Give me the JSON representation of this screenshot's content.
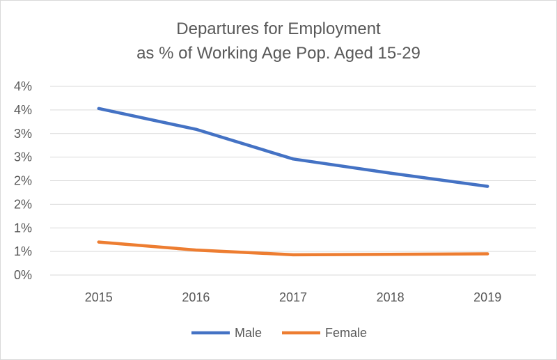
{
  "chart_data": {
    "type": "line",
    "title_lines": [
      "Departures for Employment",
      "as % of Working Age Pop. Aged 15-29"
    ],
    "categories": [
      "2015",
      "2016",
      "2017",
      "2018",
      "2019"
    ],
    "y_tick_labels": [
      "0%",
      "1%",
      "1%",
      "2%",
      "2%",
      "3%",
      "3%",
      "4%",
      "4%"
    ],
    "ylim": [
      0,
      4.0
    ],
    "grid": true,
    "legend_position": "bottom",
    "series": [
      {
        "name": "Male",
        "color": "#4472C4",
        "values": [
          3.53,
          3.09,
          2.46,
          2.16,
          1.88
        ]
      },
      {
        "name": "Female",
        "color": "#ED7D31",
        "values": [
          0.7,
          0.53,
          0.43,
          0.44,
          0.45
        ]
      }
    ]
  }
}
